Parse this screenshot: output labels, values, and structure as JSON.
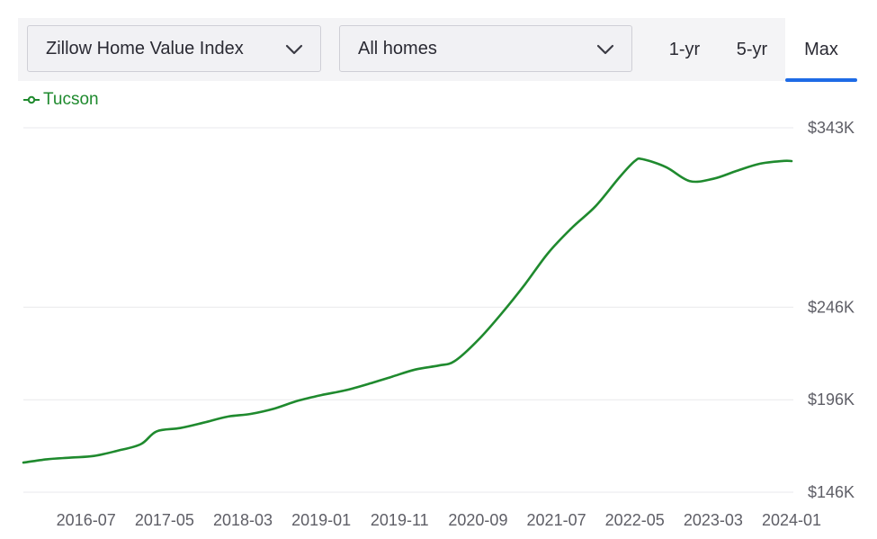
{
  "controls": {
    "index_select": "Zillow Home Value Index",
    "home_type_select": "All homes",
    "tabs": [
      {
        "label": "1-yr",
        "active": false
      },
      {
        "label": "5-yr",
        "active": false
      },
      {
        "label": "Max",
        "active": true
      }
    ]
  },
  "colors": {
    "series": "#1f8a2e",
    "active_tab_underline": "#1e6be6",
    "gridline": "#e9e9ec",
    "tick_text": "#5e5e66"
  },
  "icons": {
    "select_chevron": "chevron-down-icon",
    "legend_marker": "line-marker-icon"
  },
  "chart_data": {
    "type": "line",
    "title": "",
    "xlabel": "",
    "ylabel": "",
    "legend_position": "top-left",
    "grid": true,
    "ylim": [
      146000,
      343000
    ],
    "xlim": [
      "2015-11",
      "2024-01"
    ],
    "y_ticks": [
      {
        "value": 146000,
        "label": "$146K"
      },
      {
        "value": 196000,
        "label": "$196K"
      },
      {
        "value": 246000,
        "label": "$246K"
      },
      {
        "value": 343000,
        "label": "$343K"
      }
    ],
    "x_ticks": [
      "2016-07",
      "2017-05",
      "2018-03",
      "2019-01",
      "2019-11",
      "2020-09",
      "2021-07",
      "2022-05",
      "2023-03",
      "2024-01"
    ],
    "series": [
      {
        "name": "Tucson",
        "x": [
          "2015-11",
          "2016-02",
          "2016-05",
          "2016-08",
          "2016-11",
          "2017-02",
          "2017-04",
          "2017-07",
          "2017-10",
          "2018-01",
          "2018-04",
          "2018-07",
          "2018-10",
          "2019-01",
          "2019-04",
          "2019-07",
          "2019-10",
          "2020-01",
          "2020-04",
          "2020-06",
          "2020-09",
          "2020-12",
          "2021-03",
          "2021-06",
          "2021-09",
          "2021-12",
          "2022-03",
          "2022-05",
          "2022-06",
          "2022-09",
          "2022-12",
          "2023-03",
          "2023-06",
          "2023-09",
          "2023-12",
          "2024-01"
        ],
        "y": [
          162000,
          163800,
          164700,
          165600,
          168400,
          172000,
          178900,
          180700,
          183600,
          186800,
          188300,
          191200,
          195400,
          198500,
          201000,
          204500,
          208400,
          212300,
          214500,
          216800,
          228200,
          242600,
          258400,
          275600,
          289000,
          300600,
          316000,
          325000,
          326000,
          321700,
          314200,
          315400,
          319700,
          323600,
          325100,
          325000
        ]
      }
    ]
  }
}
